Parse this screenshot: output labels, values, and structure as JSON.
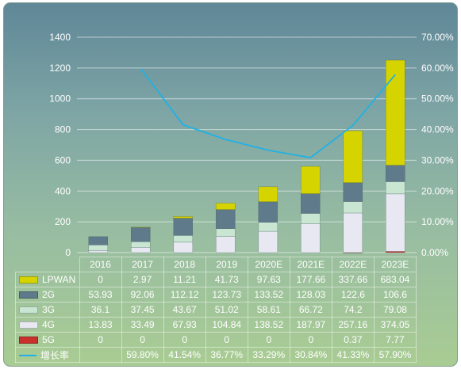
{
  "chart_data": {
    "type": "bar",
    "stacked": true,
    "categories": [
      "2016",
      "2017",
      "2018",
      "2019",
      "2020E",
      "2021E",
      "2022E",
      "2023E"
    ],
    "series": [
      {
        "name": "LPWAN",
        "values": [
          "0",
          "2.97",
          "11.21",
          "41.73",
          "97.63",
          "177.66",
          "337.66",
          "683.04"
        ],
        "color": "#d6d400"
      },
      {
        "name": "2G",
        "values": [
          "53.93",
          "92.06",
          "112.12",
          "123.73",
          "133.52",
          "128.03",
          "122.6",
          "106.6"
        ],
        "color": "#5f7a8a"
      },
      {
        "name": "3G",
        "values": [
          "36.1",
          "37.45",
          "43.67",
          "51.02",
          "58.61",
          "66.72",
          "74.2",
          "79.08"
        ],
        "color": "#c9e6d2"
      },
      {
        "name": "4G",
        "values": [
          "13.83",
          "33.49",
          "67.93",
          "104.84",
          "138.52",
          "187.97",
          "257.16",
          "374.05"
        ],
        "color": "#e7e8f1"
      },
      {
        "name": "5G",
        "values": [
          "0",
          "0",
          "0",
          "0",
          "0",
          "0",
          "0.37",
          "7.77"
        ],
        "color": "#c8312b"
      }
    ],
    "line_series": {
      "name": "增长率",
      "values": [
        "",
        "59.80%",
        "41.54%",
        "36.77%",
        "33.29%",
        "30.84%",
        "41.33%",
        "57.90%"
      ],
      "color": "#1fb1e6",
      "axis": "right"
    },
    "ylim": [
      0,
      1400
    ],
    "yticks": [
      "0",
      "200",
      "400",
      "600",
      "800",
      "1000",
      "1200",
      "1400"
    ],
    "y2lim": [
      0,
      70
    ],
    "y2ticks": [
      "0.00%",
      "10.00%",
      "20.00%",
      "30.00%",
      "40.00%",
      "50.00%",
      "60.00%",
      "70.00%"
    ],
    "grid": true,
    "legend": "data-table"
  }
}
